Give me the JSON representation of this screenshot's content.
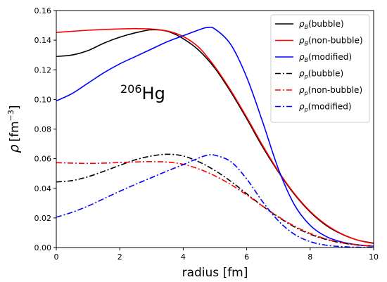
{
  "chart_data": {
    "type": "line",
    "title": "",
    "xlabel": "radius [fm]",
    "ylabel": {
      "symbol": "ρ",
      "unit_open": "[fm",
      "unit_exp": "−3",
      "unit_close": "]"
    },
    "xlim": [
      0,
      10
    ],
    "ylim": [
      0,
      0.16
    ],
    "xticks": [
      "0",
      "2",
      "4",
      "6",
      "8",
      "10"
    ],
    "yticks": [
      "0.00",
      "0.02",
      "0.04",
      "0.06",
      "0.08",
      "0.10",
      "0.12",
      "0.14",
      "0.16"
    ],
    "grid": false,
    "legend_position": "top-right",
    "annotation": {
      "mass": "206",
      "element": "Hg"
    },
    "series": [
      {
        "name": "ρB(bubble)",
        "symbol": "ρ",
        "sub": "B",
        "label": "(bubble)",
        "color": "#000000",
        "style": "solid",
        "x": [
          0,
          0.5,
          1,
          1.5,
          2,
          2.5,
          3,
          3.5,
          4,
          4.5,
          5,
          5.5,
          6,
          6.5,
          7,
          7.5,
          8,
          8.5,
          9,
          9.5,
          10
        ],
        "y": [
          0.129,
          0.13,
          0.133,
          0.138,
          0.142,
          0.145,
          0.147,
          0.146,
          0.141,
          0.133,
          0.121,
          0.105,
          0.087,
          0.068,
          0.051,
          0.036,
          0.024,
          0.015,
          0.009,
          0.005,
          0.003
        ]
      },
      {
        "name": "ρB(non-bubble)",
        "symbol": "ρ",
        "sub": "B",
        "label": "(non-bubble)",
        "color": "#ff0000",
        "style": "solid",
        "x": [
          0,
          0.5,
          1,
          1.5,
          2,
          2.5,
          3,
          3.5,
          4,
          4.5,
          5,
          5.5,
          6,
          6.5,
          7,
          7.5,
          8,
          8.5,
          9,
          9.5,
          10
        ],
        "y": [
          0.1452,
          0.146,
          0.1467,
          0.1472,
          0.1476,
          0.1478,
          0.1475,
          0.1462,
          0.1425,
          0.135,
          0.122,
          0.106,
          0.088,
          0.069,
          0.0515,
          0.0365,
          0.0245,
          0.0155,
          0.0092,
          0.005,
          0.0027
        ]
      },
      {
        "name": "ρB(modified)",
        "symbol": "ρ",
        "sub": "B",
        "label": "(modified)",
        "color": "#0000ff",
        "style": "solid",
        "x": [
          0,
          0.5,
          1,
          1.5,
          2,
          2.5,
          3,
          3.5,
          4,
          4.5,
          4.75,
          5,
          5.5,
          6,
          6.5,
          7,
          7.5,
          8,
          8.5,
          9,
          9.5,
          10
        ],
        "y": [
          0.099,
          0.104,
          0.111,
          0.118,
          0.124,
          0.129,
          0.134,
          0.139,
          0.143,
          0.147,
          0.1485,
          0.1475,
          0.137,
          0.115,
          0.085,
          0.053,
          0.029,
          0.015,
          0.0075,
          0.0037,
          0.0018,
          0.0009
        ]
      },
      {
        "name": "ρp(bubble)",
        "symbol": "ρ",
        "sub": "p",
        "label": "(bubble)",
        "color": "#000000",
        "style": "dashdot",
        "x": [
          0,
          0.5,
          1,
          1.5,
          2,
          2.5,
          3,
          3.5,
          4,
          4.5,
          5,
          5.5,
          6,
          6.5,
          7,
          7.5,
          8,
          8.5,
          9,
          9.5,
          10
        ],
        "y": [
          0.0443,
          0.0452,
          0.0478,
          0.0515,
          0.0555,
          0.0593,
          0.0618,
          0.063,
          0.0618,
          0.0578,
          0.052,
          0.0447,
          0.0363,
          0.028,
          0.0205,
          0.014,
          0.009,
          0.0055,
          0.0031,
          0.0017,
          0.0009
        ]
      },
      {
        "name": "ρp(non-bubble)",
        "symbol": "ρ",
        "sub": "p",
        "label": "(non-bubble)",
        "color": "#ff0000",
        "style": "dashdot",
        "x": [
          0,
          0.5,
          1,
          1.5,
          2,
          2.5,
          3,
          3.5,
          4,
          4.5,
          5,
          5.5,
          6,
          6.5,
          7,
          7.5,
          8,
          8.5,
          9,
          9.5,
          10
        ],
        "y": [
          0.0573,
          0.057,
          0.0568,
          0.057,
          0.0574,
          0.0578,
          0.058,
          0.0577,
          0.0562,
          0.053,
          0.0484,
          0.0425,
          0.0355,
          0.028,
          0.0208,
          0.0145,
          0.0095,
          0.0058,
          0.0033,
          0.0018,
          0.001
        ]
      },
      {
        "name": "ρp(modified)",
        "symbol": "ρ",
        "sub": "p",
        "label": "(modified)",
        "color": "#0000ff",
        "style": "dashdot",
        "x": [
          0,
          0.5,
          1,
          1.5,
          2,
          2.5,
          3,
          3.5,
          4,
          4.5,
          4.75,
          5,
          5.5,
          6,
          6.5,
          7,
          7.5,
          8,
          8.5,
          9,
          9.5,
          10
        ],
        "y": [
          0.0205,
          0.0238,
          0.028,
          0.033,
          0.038,
          0.0427,
          0.0472,
          0.0517,
          0.056,
          0.0605,
          0.0623,
          0.0623,
          0.058,
          0.0463,
          0.031,
          0.018,
          0.009,
          0.004,
          0.0016,
          0.0006,
          0.0002,
          0.0001
        ]
      }
    ]
  }
}
